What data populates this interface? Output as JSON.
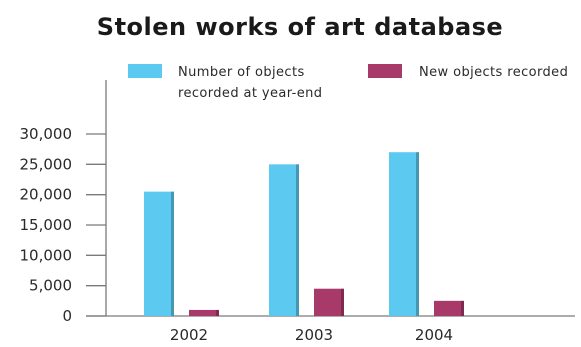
{
  "chart_data": {
    "type": "bar",
    "title": "Stolen works of art database",
    "categories": [
      "2002",
      "2003",
      "2004"
    ],
    "series": [
      {
        "name": "Number of objects recorded at year-end",
        "name_lines": [
          "Number of objects",
          "recorded at year-end"
        ],
        "values": [
          20500,
          25000,
          27000
        ],
        "color": "#5ccaf0"
      },
      {
        "name": "New objects recorded",
        "name_lines": [
          "New objects recorded"
        ],
        "values": [
          1000,
          4500,
          2500
        ],
        "color": "#a83a6a"
      }
    ],
    "yticks": [
      "0",
      "5,000",
      "10,000",
      "15,000",
      "20,000",
      "25,000",
      "30,000"
    ],
    "ylim": [
      0,
      30000
    ],
    "xlabel": "",
    "ylabel": "",
    "grid": false,
    "legend_position": "top"
  }
}
